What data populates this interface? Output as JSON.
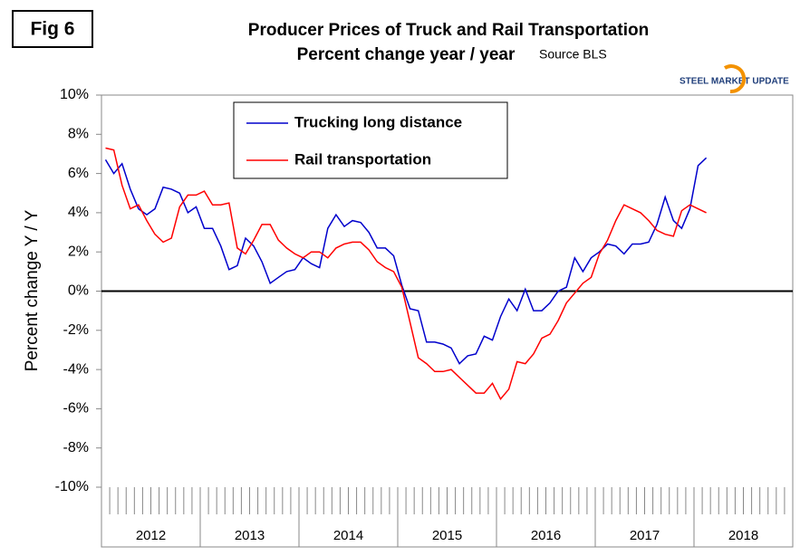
{
  "figure_label": "Fig 6",
  "logo": "STEEL MARKET UPDATE",
  "chart_data": {
    "type": "line",
    "title": "Producer Prices of Truck and Rail Transportation",
    "subtitle": "Percent change year / year",
    "source": "Source BLS",
    "y_label": "Percent change Y / Y",
    "categories": [
      null,
      null,
      null,
      null,
      null,
      null,
      null,
      null,
      null,
      null,
      null,
      null,
      null,
      null,
      null,
      null,
      null,
      null,
      null,
      null,
      null,
      null,
      null,
      null,
      null,
      null,
      null,
      null,
      null,
      null,
      null,
      null,
      null,
      null,
      null,
      null,
      null,
      null,
      null,
      null,
      null,
      null,
      null,
      null,
      null,
      null,
      null,
      null,
      null,
      null,
      null,
      null,
      null,
      null,
      null,
      null,
      null,
      null,
      null,
      null,
      null,
      null,
      null,
      null,
      null,
      null,
      null,
      null,
      null,
      null,
      null,
      null,
      null,
      null,
      null,
      null,
      null,
      null,
      null,
      null,
      null,
      null,
      null,
      null
    ],
    "year_labels": [
      "2012",
      "2013",
      "2014",
      "2015",
      "2016",
      "2017",
      "2018"
    ],
    "series": [
      {
        "name": "Trucking long distance",
        "color": "#0000cc",
        "values": [
          6.7,
          6.0,
          6.5,
          5.2,
          4.2,
          3.9,
          4.2,
          5.3,
          5.2,
          5.0,
          4.0,
          4.3,
          3.2,
          3.2,
          2.3,
          1.1,
          1.3,
          2.7,
          2.3,
          1.5,
          0.4,
          0.7,
          1.0,
          1.1,
          1.7,
          1.4,
          1.2,
          3.2,
          3.9,
          3.3,
          3.6,
          3.5,
          3.0,
          2.2,
          2.2,
          1.8,
          0.3,
          -0.9,
          -1.0,
          -2.6,
          -2.6,
          -2.7,
          -2.9,
          -3.7,
          -3.3,
          -3.2,
          -2.3,
          -2.5,
          -1.3,
          -0.4,
          -1.0,
          0.1,
          -1.0,
          -1.0,
          -0.6,
          0.0,
          0.2,
          1.7,
          1.0,
          1.7,
          2.0,
          2.4,
          2.3,
          1.9,
          2.4,
          2.4,
          2.5,
          3.4,
          4.8,
          3.6,
          3.2,
          4.2,
          6.4,
          6.8,
          null,
          null,
          null,
          null,
          null,
          null,
          null,
          null,
          null,
          null
        ]
      },
      {
        "name": "Rail transportation",
        "color": "#ff0000",
        "values": [
          7.3,
          7.2,
          5.4,
          4.2,
          4.4,
          3.6,
          2.9,
          2.5,
          2.7,
          4.3,
          4.9,
          4.9,
          5.1,
          4.4,
          4.4,
          4.5,
          2.2,
          1.9,
          2.6,
          3.4,
          3.4,
          2.6,
          2.2,
          1.9,
          1.7,
          2.0,
          2.0,
          1.7,
          2.2,
          2.4,
          2.5,
          2.5,
          2.1,
          1.5,
          1.2,
          1.0,
          0.2,
          -1.6,
          -3.4,
          -3.7,
          -4.1,
          -4.1,
          -4.0,
          -4.4,
          -4.8,
          -5.2,
          -5.2,
          -4.7,
          -5.5,
          -5.0,
          -3.6,
          -3.7,
          -3.2,
          -2.4,
          -2.2,
          -1.5,
          -0.6,
          -0.1,
          0.4,
          0.7,
          1.9,
          2.6,
          3.6,
          4.4,
          4.2,
          4.0,
          3.6,
          3.1,
          2.9,
          2.8,
          4.1,
          4.4,
          4.2,
          4.0,
          null,
          null,
          null,
          null,
          null,
          null,
          null,
          null,
          null,
          null
        ]
      }
    ],
    "ylim": [
      -10,
      10
    ],
    "yticks": [
      {
        "value": -10,
        "label": "-10%"
      },
      {
        "value": -8,
        "label": "-8%"
      },
      {
        "value": -6,
        "label": "-6%"
      },
      {
        "value": -4,
        "label": "-4%"
      },
      {
        "value": -2,
        "label": "-2%"
      },
      {
        "value": 0,
        "label": "0%"
      },
      {
        "value": 2,
        "label": "2%"
      },
      {
        "value": 4,
        "label": "4%"
      },
      {
        "value": 6,
        "label": "6%"
      },
      {
        "value": 8,
        "label": "8%"
      },
      {
        "value": 10,
        "label": "10%"
      }
    ],
    "zero_line": true,
    "legend": "upper-center"
  }
}
